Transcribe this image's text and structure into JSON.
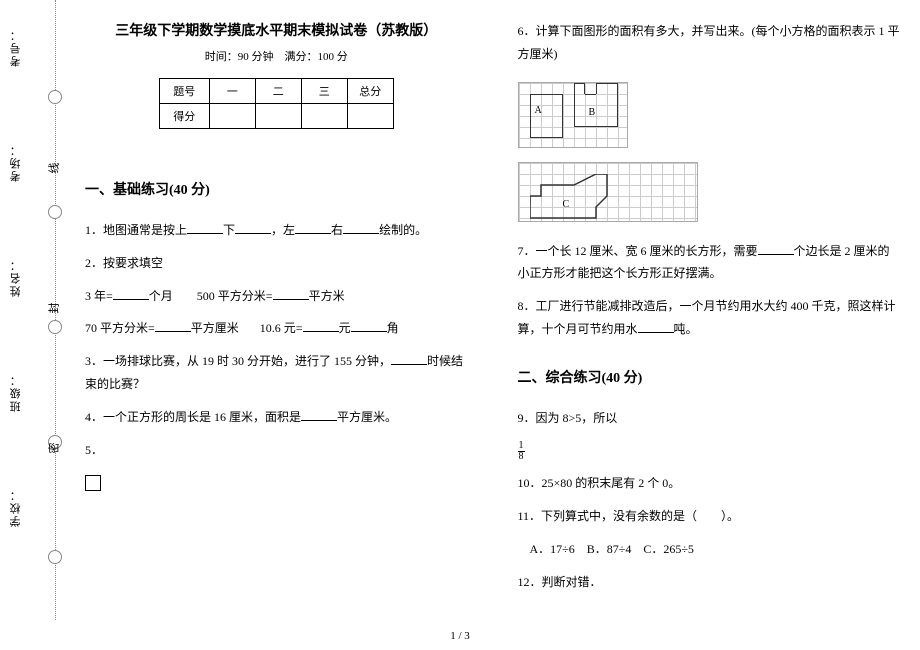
{
  "binding": {
    "labels": [
      "考号：",
      "考场：",
      "姓名：",
      "班级：",
      "学校："
    ],
    "seal_chars": [
      "线",
      "封",
      "密"
    ]
  },
  "header": {
    "title": "三年级下学期数学摸底水平期末模拟试卷（苏教版）",
    "subtitle": "时间：90 分钟　满分：100 分"
  },
  "score_table": {
    "headers": [
      "题号",
      "一",
      "二",
      "三",
      "总分"
    ],
    "row_label": "得分"
  },
  "section1": {
    "heading": "一、基础练习(40 分)",
    "q1": "1．地图通常是按上______下______，左______右______绘制的。",
    "q2": "2．按要求填空",
    "q2_line1a": "3 年=______个月",
    "q2_line1b": "500 平方分米=______平方米",
    "q2_line2a": "70 平方分米=______平方厘米",
    "q2_line2b": "10.6 元=______元______角",
    "q3": "3．一场排球比赛，从 19 时 30 分开始，进行了 155 分钟，______时候结束的比赛？",
    "q4": "4．一个正方形的周长是 16 厘米，面积是______平方厘米。",
    "q5": "5．",
    "q6": "6．计算下面图形的面积有多大，并写出来。(每个小方格的面积表示 1 平方厘米)",
    "q7": "7．一个长 12 厘米、宽 6 厘米的长方形，需要______个边长是 2 厘米的小正方形才能把这个长方形正好摆满。",
    "q8": "8．工厂进行节能减排改造后，一个月节约用水大约 400 千克，照这样计算，十个月可节约用水______吨。"
  },
  "section2": {
    "heading": "二、综合练习(40 分)",
    "q9": "9．因为 8>5，所以",
    "frac_n": "1",
    "frac_d": "8",
    "q10": "10．25×80 的积末尾有 2 个 0。",
    "q11": "11．下列算式中，没有余数的是（　　）。",
    "q11_opts": "　A．17÷6　B．87÷4　C．265÷5",
    "q12": "12．判断对错．"
  },
  "footer": {
    "page": "1 / 3"
  },
  "style": {
    "bg": "#ffffff",
    "text": "#000000",
    "grid": "#cccccc",
    "border": "#333333",
    "font_body": 12,
    "font_title": 14
  }
}
